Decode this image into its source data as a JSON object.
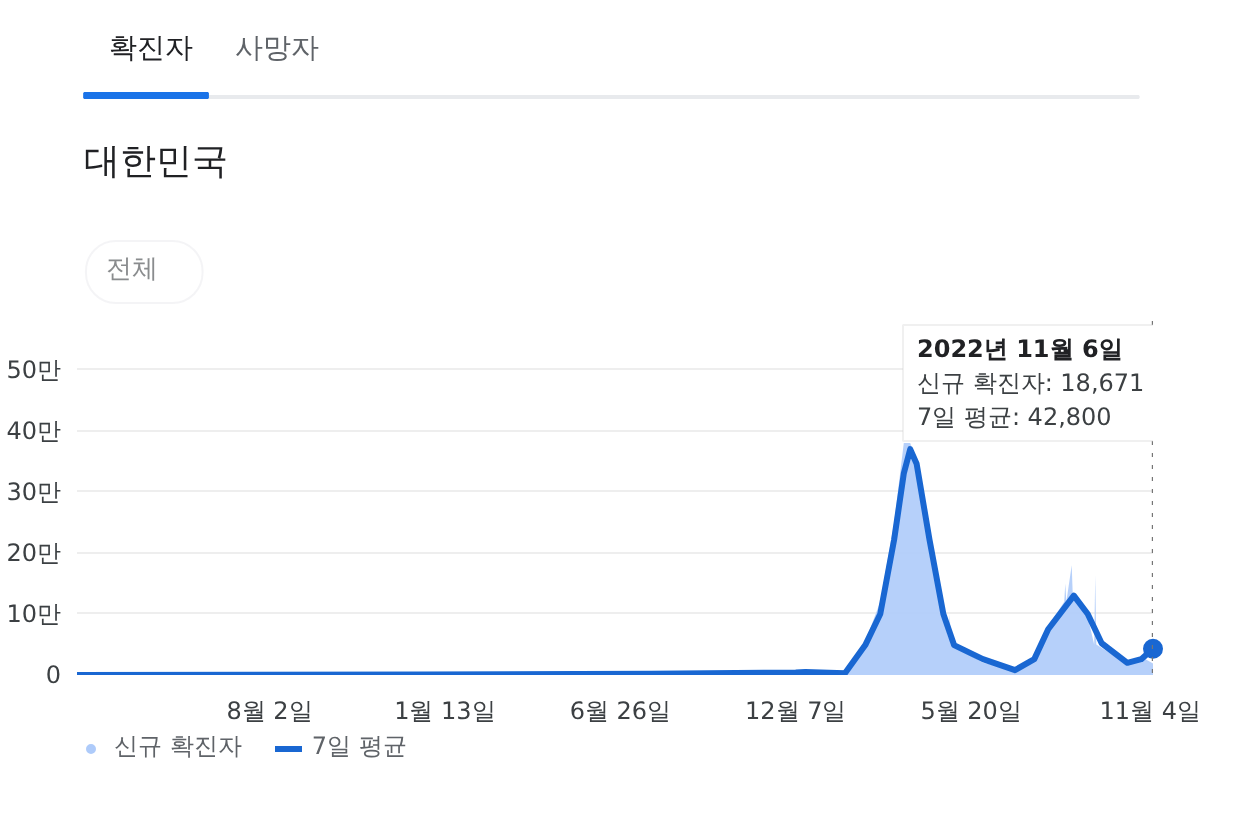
{
  "chart_data": {
    "type": "area",
    "title": "대한민국",
    "subtitle": "전체",
    "annotations": [
      "2022년 11월 6일",
      "신규 확진자: 18,671",
      "7일 평균: 42,800",
      "확진자",
      "사망자"
    ],
    "series": [
      {
        "name": "신규 확진자",
        "color": "#aecbfa",
        "x": [
          "2020-02-04",
          "2020-12-25",
          "2021-07-25",
          "2021-12-07",
          "2021-12-16",
          "2022-01-22",
          "2022-02-10",
          "2022-02-24",
          "2022-03-09",
          "2022-03-18",
          "2022-03-24",
          "2022-03-30",
          "2022-04-11",
          "2022-04-24",
          "2022-04-29",
          "2022-04-30",
          "2022-05-01",
          "2022-05-31",
          "2022-06-30",
          "2022-07-18",
          "2022-07-31",
          "2022-08-15",
          "2022-08-16",
          "2022-08-17",
          "2022-08-22",
          "2022-08-23",
          "2022-09-06",
          "2022-09-12",
          "2022-09-13",
          "2022-09-14",
          "2022-10-13",
          "2022-10-26",
          "2022-11-06"
        ],
        "values": [
          0,
          0.1,
          0.2,
          0.5,
          0.7,
          0.5,
          5.5,
          12,
          25,
          38,
          38,
          35,
          20,
          9,
          6,
          10,
          5,
          2,
          0.8,
          3,
          8,
          12,
          15,
          12,
          18,
          13,
          9.5,
          5,
          16.3,
          5,
          1.8,
          3,
          1.9
        ]
      },
      {
        "name": "7일 평균",
        "type": "line",
        "color": "#1967d2",
        "x": [
          "2020-02-04",
          "2020-12-25",
          "2021-07-25",
          "2021-12-07",
          "2021-12-16",
          "2022-01-22",
          "2022-02-10",
          "2022-02-24",
          "2022-03-09",
          "2022-03-18",
          "2022-03-24",
          "2022-03-30",
          "2022-04-11",
          "2022-04-24",
          "2022-05-04",
          "2022-05-31",
          "2022-06-30",
          "2022-07-18",
          "2022-07-31",
          "2022-08-24",
          "2022-09-06",
          "2022-09-19",
          "2022-10-13",
          "2022-10-26",
          "2022-11-06"
        ],
        "values": [
          0,
          0.1,
          0.2,
          0.4,
          0.5,
          0.3,
          4.9,
          10,
          22.2,
          33,
          37,
          34.6,
          22.2,
          10,
          4.9,
          2.6,
          0.8,
          2.6,
          7.5,
          13,
          10,
          5.2,
          2,
          2.6,
          4.3
        ]
      }
    ],
    "ref_lines": [
      {
        "axis": "x",
        "value": "2022-11-06",
        "color": "#757575",
        "line_style": "dotted"
      }
    ],
    "xlim": [
      "2020-02-04",
      "2022-11-06"
    ],
    "xticks": [
      {
        "value": "2020-08-02",
        "label": "8월 2일"
      },
      {
        "value": "2021-01-13",
        "label": "1월 13일"
      },
      {
        "value": "2021-06-26",
        "label": "6월 26일"
      },
      {
        "value": "2021-12-07",
        "label": "12월 7일"
      },
      {
        "value": "2022-05-20",
        "label": "5월 20일"
      },
      {
        "value": "2022-11-04",
        "label": "11월 4일"
      }
    ],
    "ylim": [
      0,
      58
    ],
    "yticks": [
      0,
      {
        "value": 10,
        "label": "10만"
      },
      {
        "value": 20,
        "label": "20만"
      },
      {
        "value": 30,
        "label": "30만"
      },
      {
        "value": 40,
        "label": "40만"
      },
      {
        "value": 50,
        "label": "50만"
      }
    ],
    "grid": "y",
    "legend": "bottom",
    "marker": "none"
  }
}
